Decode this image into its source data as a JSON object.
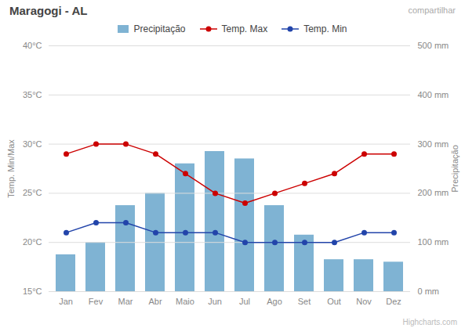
{
  "chart_data": {
    "type": "combo",
    "title": "Maragogi - AL",
    "y_label": "Temp. Min/Max",
    "y2_label": "Precipitação",
    "categories": [
      "Jan",
      "Fev",
      "Mar",
      "Abr",
      "Maio",
      "Jun",
      "Jul",
      "Ago",
      "Set",
      "Out",
      "Nov",
      "Dez"
    ],
    "series": [
      {
        "name": "Precipitação",
        "type": "bar",
        "axis": "y2",
        "color": "#7fb3d3",
        "values": [
          75,
          100,
          175,
          200,
          260,
          285,
          270,
          175,
          115,
          65,
          65,
          60
        ]
      },
      {
        "name": "Temp. Max",
        "type": "line",
        "color": "#cc0000",
        "marker": "circle",
        "values": [
          29,
          30,
          30,
          29,
          27,
          25,
          24,
          25,
          26,
          27,
          29,
          29
        ]
      },
      {
        "name": "Temp. Min",
        "type": "line",
        "color": "#2244aa",
        "marker": "circle",
        "values": [
          21,
          22,
          22,
          21,
          21,
          21,
          20,
          20,
          20,
          20,
          21,
          21
        ]
      }
    ],
    "ylim": [
      15,
      40
    ],
    "yticks": [
      {
        "value": 15,
        "label": "15°C"
      },
      {
        "value": 20,
        "label": "20°C"
      },
      {
        "value": 25,
        "label": "25°C"
      },
      {
        "value": 30,
        "label": "30°C"
      },
      {
        "value": 35,
        "label": "35°C"
      },
      {
        "value": 40,
        "label": "40°C"
      }
    ],
    "y2lim": [
      0,
      500
    ],
    "y2ticks": [
      {
        "value": 0,
        "label": "0 mm"
      },
      {
        "value": 100,
        "label": "100 mm"
      },
      {
        "value": 200,
        "label": "200 mm"
      },
      {
        "value": 300,
        "label": "300 mm"
      },
      {
        "value": 400,
        "label": "400 mm"
      },
      {
        "value": 500,
        "label": "500 mm"
      }
    ],
    "grid": true,
    "legend": "top",
    "annotations": [
      "compartilhar",
      "Highcharts.com"
    ]
  }
}
